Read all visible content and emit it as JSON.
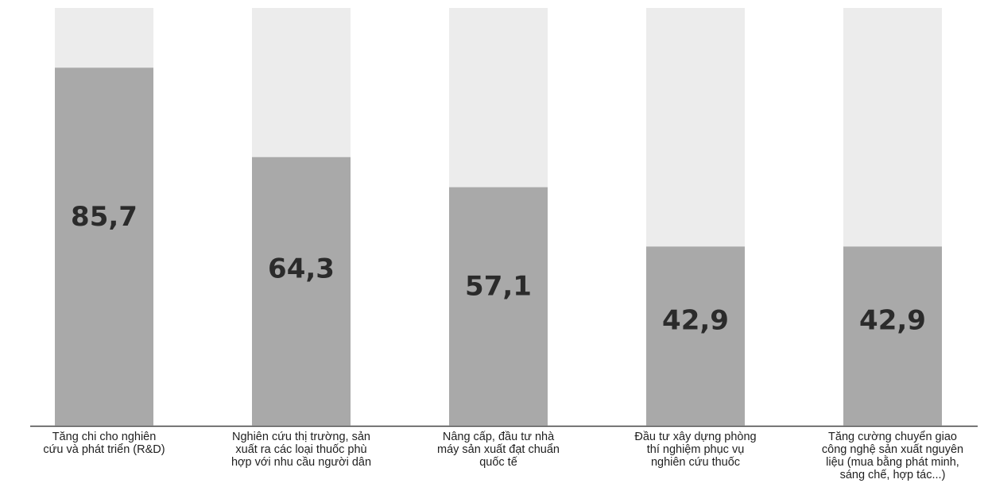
{
  "chart_data": {
    "type": "bar",
    "title": "",
    "xlabel": "",
    "ylabel": "",
    "ylim": [
      0,
      100
    ],
    "grid": false,
    "categories": [
      "Tăng chi cho nghiên\ncứu và phát triển (R&D)",
      "Nghiên cứu thị trường, sản\nxuất ra các loại thuốc phù\nhợp với nhu cầu người dân",
      "Nâng cấp, đầu tư nhà\nmáy sản xuất đạt chuẩn\nquốc tế",
      "Đầu tư xây dựng phòng\nthí nghiệm phục vụ\nnghiên cứu thuốc",
      "Tăng cường chuyển giao\ncông nghệ sản xuất nguyên\nliệu (mua bằng phát minh,\nsáng chế, hợp tác...)"
    ],
    "values": [
      85.7,
      64.3,
      57.1,
      42.9,
      42.9
    ],
    "value_labels": [
      "85,7",
      "64,3",
      "57,1",
      "42,9",
      "42,9"
    ],
    "colors": {
      "bar_fill": "#a9a9a9",
      "bar_background": "#ececec",
      "label": "#2b2b2b"
    }
  }
}
